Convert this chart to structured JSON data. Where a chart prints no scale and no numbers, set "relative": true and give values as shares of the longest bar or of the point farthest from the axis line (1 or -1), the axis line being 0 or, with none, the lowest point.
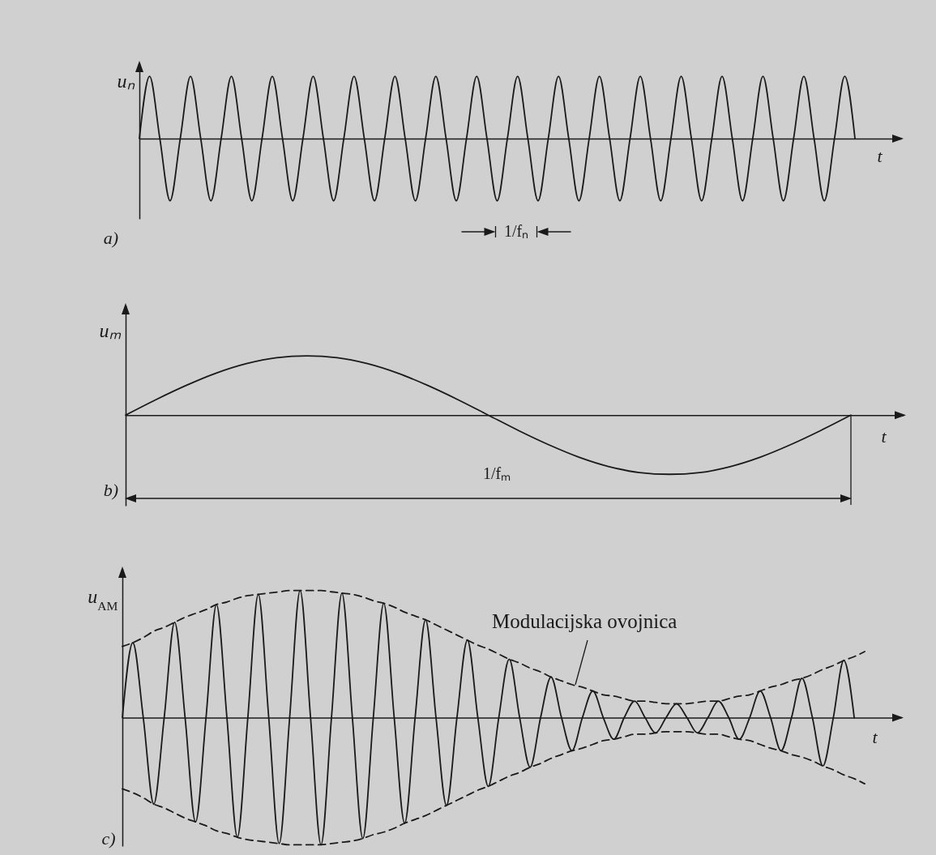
{
  "chart_data": [
    {
      "type": "line",
      "relative": true,
      "ylabel": "uₙ",
      "xlabel": "t",
      "annotations": [
        "a)",
        "1/fₙ"
      ],
      "categories": [
        null,
        null,
        null,
        null,
        null,
        null,
        null,
        null,
        null,
        null,
        null,
        null,
        null,
        null,
        null,
        null,
        null,
        null,
        null,
        null,
        null,
        null,
        null,
        null,
        null,
        null,
        null,
        null,
        null,
        null,
        null,
        null,
        null,
        null,
        null,
        null,
        null,
        null,
        null,
        null,
        null,
        null,
        null,
        null,
        null,
        null,
        null,
        null,
        null,
        null,
        null,
        null,
        null,
        null,
        null,
        null,
        null,
        null,
        null,
        null,
        null,
        null,
        null,
        null,
        null,
        null,
        null,
        null,
        null,
        null,
        null
      ],
      "series": [
        {
          "color": "#1a1a1a",
          "values": [
            0,
            1,
            0,
            -1,
            0,
            1,
            0,
            -1,
            0,
            1,
            0,
            -1,
            0,
            1,
            0,
            -1,
            0,
            1,
            0,
            -1,
            0,
            1,
            0,
            -1,
            0,
            1,
            0,
            -1,
            0,
            1,
            0,
            -1,
            0,
            1,
            0,
            -1,
            0,
            1,
            0,
            -1,
            0,
            1,
            0,
            -1,
            0,
            1,
            0,
            -1,
            0,
            1,
            0,
            -1,
            0,
            1,
            0,
            -1,
            0,
            1,
            0,
            -1,
            0,
            1,
            0,
            -1,
            0,
            1,
            0,
            -1,
            0,
            1,
            0
          ]
        }
      ]
    },
    {
      "type": "line",
      "relative": true,
      "ylabel": "uₘ",
      "xlabel": "t",
      "annotations": [
        "b)",
        "1/fₘ"
      ],
      "categories": [
        null,
        null,
        null,
        null,
        null,
        null,
        null,
        null,
        null,
        null,
        null,
        null,
        null,
        null,
        null,
        null,
        null,
        null,
        null,
        null,
        null,
        null,
        null,
        null,
        null
      ],
      "series": [
        {
          "color": "#1a1a1a",
          "values": [
            0,
            0.26,
            0.5,
            0.71,
            0.87,
            0.97,
            1,
            0.97,
            0.87,
            0.71,
            0.5,
            0.26,
            0,
            -0.26,
            -0.5,
            -0.71,
            -0.87,
            -0.97,
            -1,
            -0.97,
            -0.87,
            -0.71,
            -0.5,
            -0.26,
            0
          ]
        }
      ]
    },
    {
      "type": "line",
      "relative": true,
      "ylabel": "u$_{AM}$",
      "xlabel": "t",
      "annotations": [
        "c)",
        {
          "text": "Modulacijska ovojnica",
          "y": 0.26
        }
      ],
      "categories": [
        null,
        null,
        null,
        null,
        null,
        null,
        null,
        null,
        null,
        null,
        null,
        null,
        null,
        null,
        null,
        null,
        null,
        null,
        null,
        null,
        null,
        null,
        null,
        null,
        null,
        null,
        null,
        null,
        null,
        null,
        null,
        null,
        null,
        null,
        null,
        null,
        null,
        null,
        null,
        null,
        null,
        null,
        null,
        null,
        null,
        null,
        null,
        null,
        null,
        null,
        null,
        null,
        null,
        null,
        null,
        null,
        null,
        null,
        null,
        null,
        null,
        null,
        null,
        null,
        null,
        null,
        null,
        null,
        null,
        null,
        null,
        null
      ],
      "series": [
        {
          "color": "#1a1a1a",
          "values": [
            0,
            0.59,
            0,
            -0.68,
            0,
            0.75,
            0,
            -0.82,
            0,
            0.89,
            0,
            -0.94,
            0,
            0.97,
            0,
            -0.99,
            0,
            1,
            0,
            -1,
            0,
            0.98,
            0,
            -0.95,
            0,
            0.9,
            0,
            -0.83,
            0,
            0.77,
            0,
            -0.69,
            0,
            0.61,
            0,
            -0.54,
            0,
            0.46,
            0,
            -0.39,
            0,
            0.32,
            0,
            -0.26,
            0,
            0.21,
            0,
            -0.17,
            0,
            0.13,
            0,
            -0.12,
            0,
            0.11,
            0,
            -0.12,
            0,
            0.13,
            0,
            -0.17,
            0,
            0.21,
            0,
            -0.26,
            0,
            0.31,
            0,
            -0.38,
            0,
            0.45,
            0,
            null
          ]
        },
        {
          "color": "#1a1a1a",
          "line_style": "dashed",
          "values": [
            0.56,
            0.59,
            0.63,
            0.68,
            0.71,
            0.75,
            0.79,
            0.82,
            0.85,
            0.89,
            0.91,
            0.94,
            0.96,
            0.97,
            0.98,
            0.99,
            1,
            1,
            1,
            1,
            0.99,
            0.98,
            0.97,
            0.95,
            0.92,
            0.9,
            0.87,
            0.83,
            0.8,
            0.77,
            0.73,
            0.69,
            0.65,
            0.61,
            0.57,
            0.54,
            0.5,
            0.46,
            0.43,
            0.39,
            0.36,
            0.32,
            0.29,
            0.26,
            0.24,
            0.21,
            0.18,
            0.17,
            0.15,
            0.13,
            0.13,
            0.12,
            0.11,
            0.11,
            0.11,
            0.12,
            0.13,
            0.13,
            0.15,
            0.17,
            0.18,
            0.21,
            0.24,
            0.26,
            0.29,
            0.31,
            0.34,
            0.38,
            0.41,
            0.45,
            0.48,
            0.52
          ]
        },
        {
          "color": "#1a1a1a",
          "line_style": "dashed",
          "values": [
            -0.56,
            -0.59,
            -0.63,
            -0.68,
            -0.71,
            -0.75,
            -0.79,
            -0.82,
            -0.85,
            -0.89,
            -0.91,
            -0.94,
            -0.96,
            -0.97,
            -0.98,
            -0.99,
            -1,
            -1,
            -1,
            -1,
            -0.99,
            -0.98,
            -0.97,
            -0.95,
            -0.92,
            -0.9,
            -0.87,
            -0.83,
            -0.8,
            -0.77,
            -0.73,
            -0.69,
            -0.65,
            -0.61,
            -0.57,
            -0.54,
            -0.5,
            -0.46,
            -0.43,
            -0.39,
            -0.36,
            -0.32,
            -0.29,
            -0.26,
            -0.24,
            -0.21,
            -0.18,
            -0.17,
            -0.15,
            -0.13,
            -0.13,
            -0.12,
            -0.11,
            -0.11,
            -0.11,
            -0.12,
            -0.13,
            -0.13,
            -0.15,
            -0.17,
            -0.18,
            -0.21,
            -0.24,
            -0.26,
            -0.29,
            -0.31,
            -0.34,
            -0.38,
            -0.41,
            -0.45,
            -0.48,
            -0.52
          ]
        }
      ]
    }
  ]
}
